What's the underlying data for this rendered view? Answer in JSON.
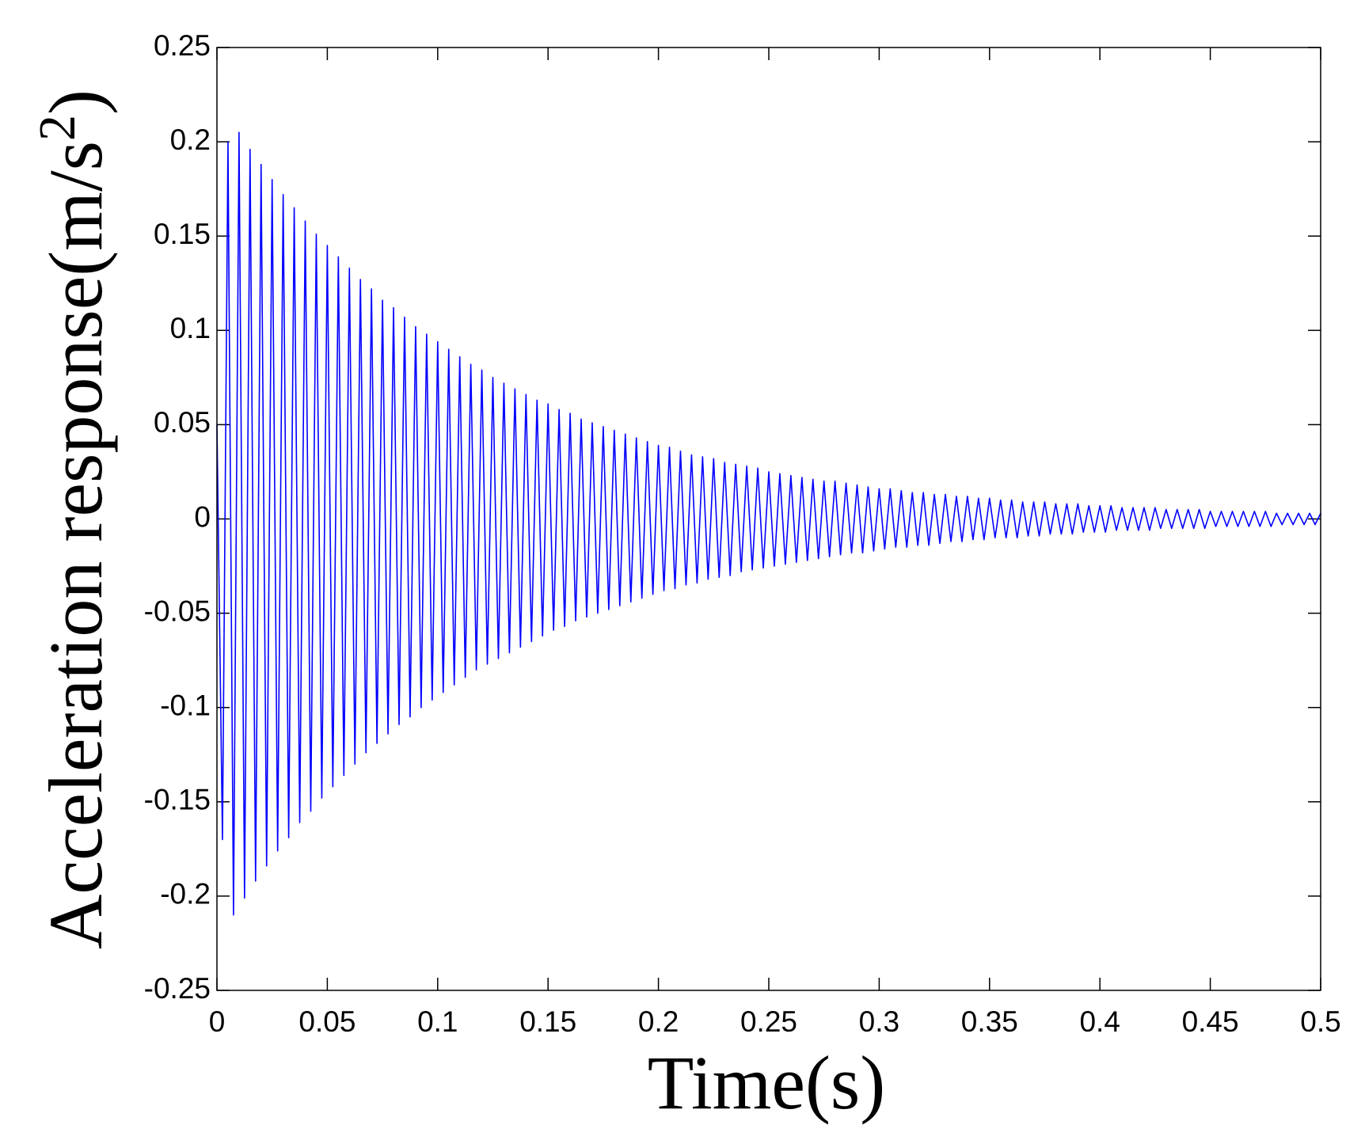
{
  "chart_data": {
    "type": "line",
    "xlabel": "Time(s)",
    "ylabel_parts": [
      "Acceleration response(m/s",
      "2",
      ")"
    ],
    "xlim": [
      0,
      0.5
    ],
    "xticks": [
      0,
      0.05,
      0.1,
      0.15,
      0.2,
      0.25,
      0.3,
      0.35,
      0.4,
      0.45,
      0.5
    ],
    "ylim": [
      -0.25,
      0.25
    ],
    "yticks": [
      -0.25,
      -0.2,
      -0.15,
      -0.1,
      -0.05,
      0,
      0.05,
      0.1,
      0.15,
      0.2,
      0.25
    ],
    "grid": false,
    "x": [
      0,
      0.0025,
      0.005,
      0.0075,
      0.01,
      0.0125,
      0.015,
      0.0175,
      0.02,
      0.0225,
      0.025,
      0.0275,
      0.03,
      0.0325,
      0.035,
      0.0375,
      0.04,
      0.0425,
      0.045,
      0.0475,
      0.05,
      0.0525,
      0.055,
      0.0575,
      0.06,
      0.0625,
      0.065,
      0.0675,
      0.07,
      0.0725,
      0.075,
      0.0775,
      0.08,
      0.0825,
      0.085,
      0.0875,
      0.09,
      0.0925,
      0.095,
      0.0975,
      0.1,
      0.1025,
      0.105,
      0.1075,
      0.11,
      0.1125,
      0.115,
      0.1175,
      0.12,
      0.1225,
      0.125,
      0.1275,
      0.13,
      0.1325,
      0.135,
      0.1375,
      0.14,
      0.1425,
      0.145,
      0.1475,
      0.15,
      0.1525,
      0.155,
      0.1575,
      0.16,
      0.1625,
      0.165,
      0.1675,
      0.17,
      0.1725,
      0.175,
      0.1775,
      0.18,
      0.1825,
      0.185,
      0.1875,
      0.19,
      0.1925,
      0.195,
      0.1975,
      0.2,
      0.2025,
      0.205,
      0.2075,
      0.21,
      0.2125,
      0.215,
      0.2175,
      0.22,
      0.2225,
      0.225,
      0.2275,
      0.23,
      0.2325,
      0.235,
      0.2375,
      0.24,
      0.2425,
      0.245,
      0.2475,
      0.25,
      0.2525,
      0.255,
      0.2575,
      0.26,
      0.2625,
      0.265,
      0.2675,
      0.27,
      0.2725,
      0.275,
      0.2775,
      0.28,
      0.2825,
      0.285,
      0.2875,
      0.29,
      0.2925,
      0.295,
      0.2975,
      0.3,
      0.3025,
      0.305,
      0.3075,
      0.31,
      0.3125,
      0.315,
      0.3175,
      0.32,
      0.3225,
      0.325,
      0.3275,
      0.33,
      0.3325,
      0.335,
      0.3375,
      0.34,
      0.3425,
      0.345,
      0.3475,
      0.35,
      0.3525,
      0.355,
      0.3575,
      0.36,
      0.3625,
      0.365,
      0.3675,
      0.37,
      0.3725,
      0.375,
      0.3775,
      0.38,
      0.3825,
      0.385,
      0.3875,
      0.39,
      0.3925,
      0.395,
      0.3975,
      0.4,
      0.4025,
      0.405,
      0.4075,
      0.41,
      0.4125,
      0.415,
      0.4175,
      0.42,
      0.4225,
      0.425,
      0.4275,
      0.43,
      0.4325,
      0.435,
      0.4375,
      0.44,
      0.4425,
      0.445,
      0.4475,
      0.45,
      0.4525,
      0.455,
      0.4575,
      0.46,
      0.4625,
      0.465,
      0.4675,
      0.47,
      0.4725,
      0.475,
      0.4775,
      0.48,
      0.4825,
      0.485,
      0.4875,
      0.49,
      0.4925,
      0.495,
      0.4975,
      0.5
    ],
    "series": [
      {
        "color": "#0000ff",
        "values": [
          0.05,
          -0.17,
          0.2,
          -0.21,
          0.205,
          -0.201,
          0.196,
          -0.192,
          0.188,
          -0.184,
          0.18,
          -0.176,
          0.172,
          -0.169,
          0.165,
          -0.161,
          0.158,
          -0.155,
          0.151,
          -0.148,
          0.145,
          -0.142,
          0.139,
          -0.136,
          0.133,
          -0.13,
          0.127,
          -0.124,
          0.122,
          -0.119,
          0.116,
          -0.114,
          0.112,
          -0.109,
          0.107,
          -0.105,
          0.102,
          -0.1,
          0.098,
          -0.096,
          0.094,
          -0.092,
          0.09,
          -0.088,
          0.086,
          -0.084,
          0.082,
          -0.08,
          0.079,
          -0.077,
          0.075,
          -0.074,
          0.072,
          -0.071,
          0.069,
          -0.068,
          0.066,
          -0.065,
          0.063,
          -0.062,
          0.061,
          -0.059,
          0.058,
          -0.057,
          0.056,
          -0.054,
          0.053,
          -0.052,
          0.051,
          -0.05,
          0.049,
          -0.048,
          0.047,
          -0.046,
          0.045,
          -0.044,
          0.043,
          -0.042,
          0.041,
          -0.04,
          0.039,
          -0.038,
          0.038,
          -0.037,
          0.036,
          -0.035,
          0.034,
          -0.034,
          0.033,
          -0.032,
          0.032,
          -0.031,
          0.03,
          -0.03,
          0.029,
          -0.028,
          0.028,
          -0.027,
          0.027,
          -0.026,
          0.025,
          -0.025,
          0.024,
          -0.024,
          0.023,
          -0.023,
          0.022,
          -0.022,
          0.021,
          -0.021,
          0.02,
          -0.02,
          0.02,
          -0.019,
          0.019,
          -0.018,
          0.018,
          -0.018,
          0.017,
          -0.017,
          0.016,
          -0.016,
          0.016,
          -0.015,
          0.015,
          -0.015,
          0.014,
          -0.014,
          0.014,
          -0.014,
          0.013,
          -0.013,
          0.013,
          -0.012,
          0.012,
          -0.012,
          0.012,
          -0.011,
          0.011,
          -0.011,
          0.011,
          -0.01,
          0.01,
          -0.01,
          0.01,
          -0.01,
          0.009,
          -0.009,
          0.009,
          -0.009,
          0.009,
          -0.008,
          0.008,
          -0.008,
          0.008,
          -0.008,
          0.008,
          -0.007,
          0.007,
          -0.007,
          0.007,
          -0.007,
          0.007,
          -0.006,
          0.006,
          -0.006,
          0.006,
          -0.006,
          0.006,
          -0.006,
          0.006,
          -0.005,
          0.005,
          -0.005,
          0.005,
          -0.005,
          0.005,
          -0.005,
          0.005,
          -0.005,
          0.004,
          -0.004,
          0.004,
          -0.004,
          0.004,
          -0.004,
          0.004,
          -0.004,
          0.004,
          -0.004,
          0.004,
          -0.004,
          0.003,
          -0.003,
          0.003,
          -0.003,
          0.003,
          -0.003,
          0.003,
          -0.003,
          0.003
        ]
      }
    ]
  }
}
